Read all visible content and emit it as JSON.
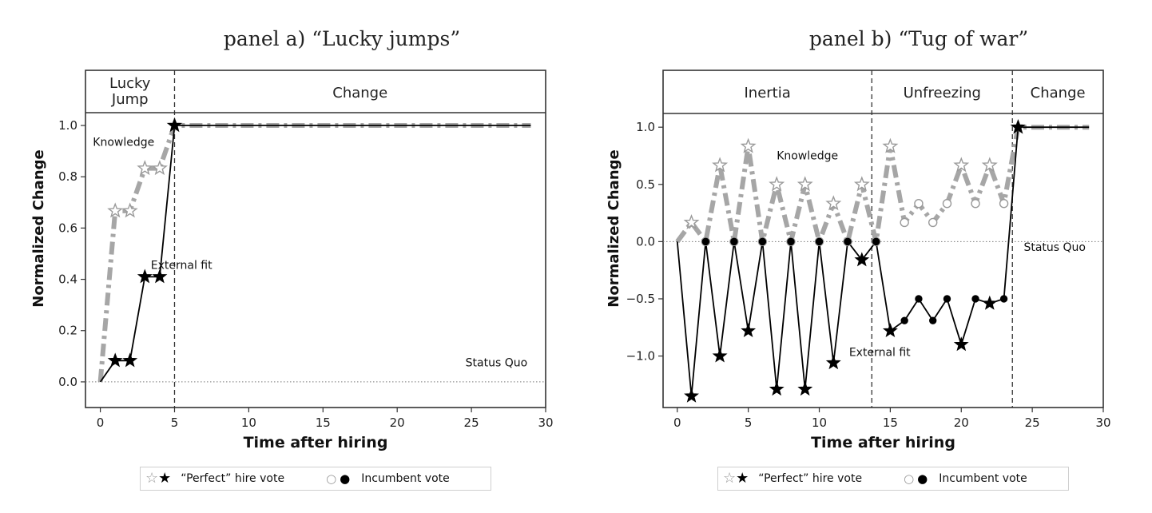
{
  "chart_data": [
    {
      "type": "line",
      "title": "panel a) “Lucky jumps”",
      "xlabel": "Time after hiring",
      "ylabel": "Normalized Change",
      "xlim": [
        -1,
        30
      ],
      "ylim": [
        -0.1,
        1.05
      ],
      "xticks": [
        "0",
        "5",
        "10",
        "15",
        "20",
        "25",
        "30"
      ],
      "yticks": [
        "0.0",
        "0.2",
        "0.4",
        "0.6",
        "0.8",
        "1.0"
      ],
      "phases": [
        {
          "label": "Lucky\nJump",
          "start": -1,
          "end": 5
        },
        {
          "label": "Change",
          "start": 5,
          "end": 30
        }
      ],
      "boundaries": [
        5
      ],
      "annotations": [
        {
          "text": "Knowledge",
          "x": -0.5,
          "y": 0.92
        },
        {
          "text": "External fit",
          "x": 3.4,
          "y": 0.44
        },
        {
          "text": "Status Quo",
          "x": 24.6,
          "y": 0.06
        }
      ],
      "reference_line": {
        "y": 0,
        "label": "Status Quo"
      },
      "series": [
        {
          "name": "Knowledge",
          "color": "#a6a6a6",
          "style": "dashdot",
          "x": [
            0,
            1,
            2,
            3,
            4,
            5,
            6,
            7,
            8,
            9,
            10,
            11,
            12,
            13,
            14,
            15,
            16,
            17,
            18,
            19,
            20,
            21,
            22,
            23,
            24,
            25,
            26,
            27,
            28,
            29
          ],
          "y": [
            0,
            0.667,
            0.667,
            0.833,
            0.833,
            1,
            1,
            1,
            1,
            1,
            1,
            1,
            1,
            1,
            1,
            1,
            1,
            1,
            1,
            1,
            1,
            1,
            1,
            1,
            1,
            1,
            1,
            1,
            1,
            1
          ],
          "markers": [
            "none",
            "star",
            "star",
            "star",
            "star",
            "star"
          ]
        },
        {
          "name": "External fit",
          "color": "#000000",
          "style": "solid",
          "x": [
            0,
            1,
            2,
            3,
            4,
            5,
            6,
            7,
            8,
            9,
            10,
            11,
            12,
            13,
            14,
            15,
            16,
            17,
            18,
            19,
            20,
            21,
            22,
            23,
            24,
            25,
            26,
            27,
            28,
            29
          ],
          "y": [
            0,
            0.083,
            0.083,
            0.41,
            0.41,
            1,
            1,
            1,
            1,
            1,
            1,
            1,
            1,
            1,
            1,
            1,
            1,
            1,
            1,
            1,
            1,
            1,
            1,
            1,
            1,
            1,
            1,
            1,
            1,
            1
          ],
          "markers": [
            "none",
            "star",
            "star",
            "star",
            "star",
            "star"
          ]
        }
      ]
    },
    {
      "type": "line",
      "title": "panel b) “Tug of war”",
      "xlabel": "Time after hiring",
      "ylabel": "Normalized Change",
      "xlim": [
        -1,
        30
      ],
      "ylim": [
        -1.45,
        1.12
      ],
      "xticks": [
        "0",
        "5",
        "10",
        "15",
        "20",
        "25",
        "30"
      ],
      "yticks": [
        "−1.0",
        "−0.5",
        "0.0",
        "0.5",
        "1.0"
      ],
      "phases": [
        {
          "label": "Inertia",
          "start": -1,
          "end": 13.7
        },
        {
          "label": "Unfreezing",
          "start": 13.7,
          "end": 23.6
        },
        {
          "label": "Change",
          "start": 23.6,
          "end": 30
        }
      ],
      "boundaries": [
        13.7,
        23.6
      ],
      "annotations": [
        {
          "text": "Knowledge",
          "x": 7,
          "y": 0.72
        },
        {
          "text": "External fit",
          "x": 12.1,
          "y": -1.0
        },
        {
          "text": "Status Quo",
          "x": 24.4,
          "y": -0.08
        }
      ],
      "reference_line": {
        "y": 0,
        "label": "Status Quo"
      },
      "series": [
        {
          "name": "Knowledge",
          "color": "#a6a6a6",
          "style": "dashdot",
          "x": [
            0,
            1,
            2,
            3,
            4,
            5,
            6,
            7,
            8,
            9,
            10,
            11,
            12,
            13,
            14,
            15,
            16,
            17,
            18,
            19,
            20,
            21,
            22,
            23,
            24,
            25,
            26,
            27,
            28,
            29
          ],
          "y": [
            0,
            0.167,
            0,
            0.667,
            0,
            0.833,
            0,
            0.5,
            0,
            0.5,
            0,
            0.333,
            0,
            0.5,
            0,
            0.833,
            0.167,
            0.333,
            0.167,
            0.333,
            0.667,
            0.333,
            0.667,
            0.333,
            1,
            1,
            1,
            1,
            1,
            1
          ],
          "markers": [
            "none",
            "star",
            "circle",
            "star",
            "circle",
            "star",
            "circle",
            "star",
            "circle",
            "star",
            "circle",
            "star",
            "circle",
            "star",
            "circle",
            "star",
            "circle",
            "circle",
            "circle",
            "circle",
            "star",
            "circle",
            "star",
            "circle",
            "star"
          ]
        },
        {
          "name": "External fit",
          "color": "#000000",
          "style": "solid",
          "x": [
            0,
            1,
            2,
            3,
            4,
            5,
            6,
            7,
            8,
            9,
            10,
            11,
            12,
            13,
            14,
            15,
            16,
            17,
            18,
            19,
            20,
            21,
            22,
            23,
            24,
            25,
            26,
            27,
            28,
            29
          ],
          "y": [
            0,
            -1.35,
            0,
            -1.0,
            0,
            -0.78,
            0,
            -1.29,
            0,
            -1.29,
            0,
            -1.06,
            0,
            -0.16,
            0,
            -0.78,
            -0.69,
            -0.5,
            -0.69,
            -0.5,
            -0.9,
            -0.5,
            -0.54,
            -0.5,
            1,
            1,
            1,
            1,
            1,
            1
          ],
          "markers": [
            "none",
            "star",
            "circle",
            "star",
            "circle",
            "star",
            "circle",
            "star",
            "circle",
            "star",
            "circle",
            "star",
            "circle",
            "star",
            "circle",
            "star",
            "circle",
            "circle",
            "circle",
            "circle",
            "star",
            "circle",
            "star",
            "circle",
            "star"
          ]
        }
      ]
    }
  ],
  "legend": {
    "perfect_label": "“Perfect” hire vote",
    "incumbent_label": "Incumbent vote"
  }
}
